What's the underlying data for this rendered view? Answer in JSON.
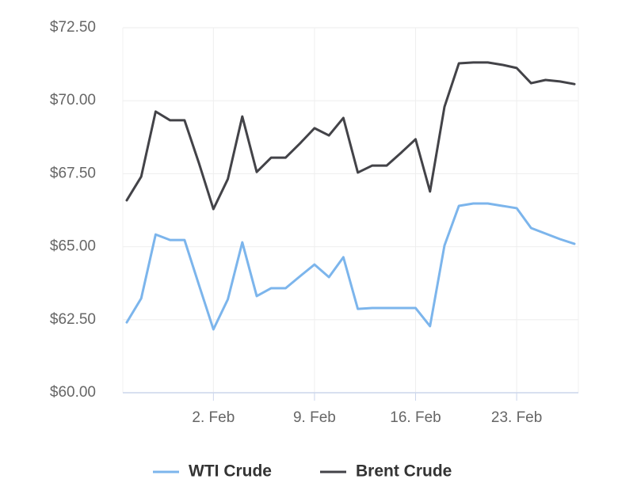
{
  "chart_data": {
    "type": "line",
    "categories": [
      null,
      null,
      null,
      null,
      null,
      null,
      "2. Feb",
      null,
      null,
      null,
      null,
      null,
      null,
      "9. Feb",
      null,
      null,
      null,
      null,
      null,
      null,
      "16. Feb",
      null,
      null,
      null,
      null,
      null,
      null,
      "23. Feb",
      null,
      null,
      null,
      null
    ],
    "series": [
      {
        "name": "WTI Crude",
        "color": "#7cb5ec",
        "values": [
          62.41,
          63.23,
          65.42,
          65.23,
          65.23,
          63.69,
          62.17,
          63.2,
          65.15,
          63.31,
          63.58,
          63.58,
          63.99,
          64.39,
          63.96,
          64.64,
          62.87,
          62.9,
          62.9,
          62.9,
          62.9,
          62.28,
          65.04,
          66.4,
          66.48,
          66.48,
          66.4,
          66.32,
          65.64,
          65.45,
          65.26,
          65.1
        ]
      },
      {
        "name": "Brent Crude",
        "color": "#434348",
        "values": [
          66.59,
          67.4,
          69.63,
          69.33,
          69.33,
          67.86,
          66.29,
          67.32,
          69.46,
          67.56,
          68.05,
          68.05,
          68.54,
          69.06,
          68.81,
          69.41,
          67.54,
          67.78,
          67.78,
          68.22,
          68.68,
          66.89,
          69.79,
          71.28,
          71.31,
          71.31,
          71.23,
          71.12,
          70.6,
          70.71,
          70.66,
          70.57
        ]
      }
    ],
    "ylim": [
      60,
      72.5
    ],
    "yticks": [
      {
        "value": 60,
        "label": "$60.00"
      },
      {
        "value": 62.5,
        "label": "$62.50"
      },
      {
        "value": 65,
        "label": "$65.00"
      },
      {
        "value": 67.5,
        "label": "$67.50"
      },
      {
        "value": 70,
        "label": "$70.00"
      },
      {
        "value": 72.5,
        "label": "$72.50"
      }
    ],
    "grid": true
  }
}
